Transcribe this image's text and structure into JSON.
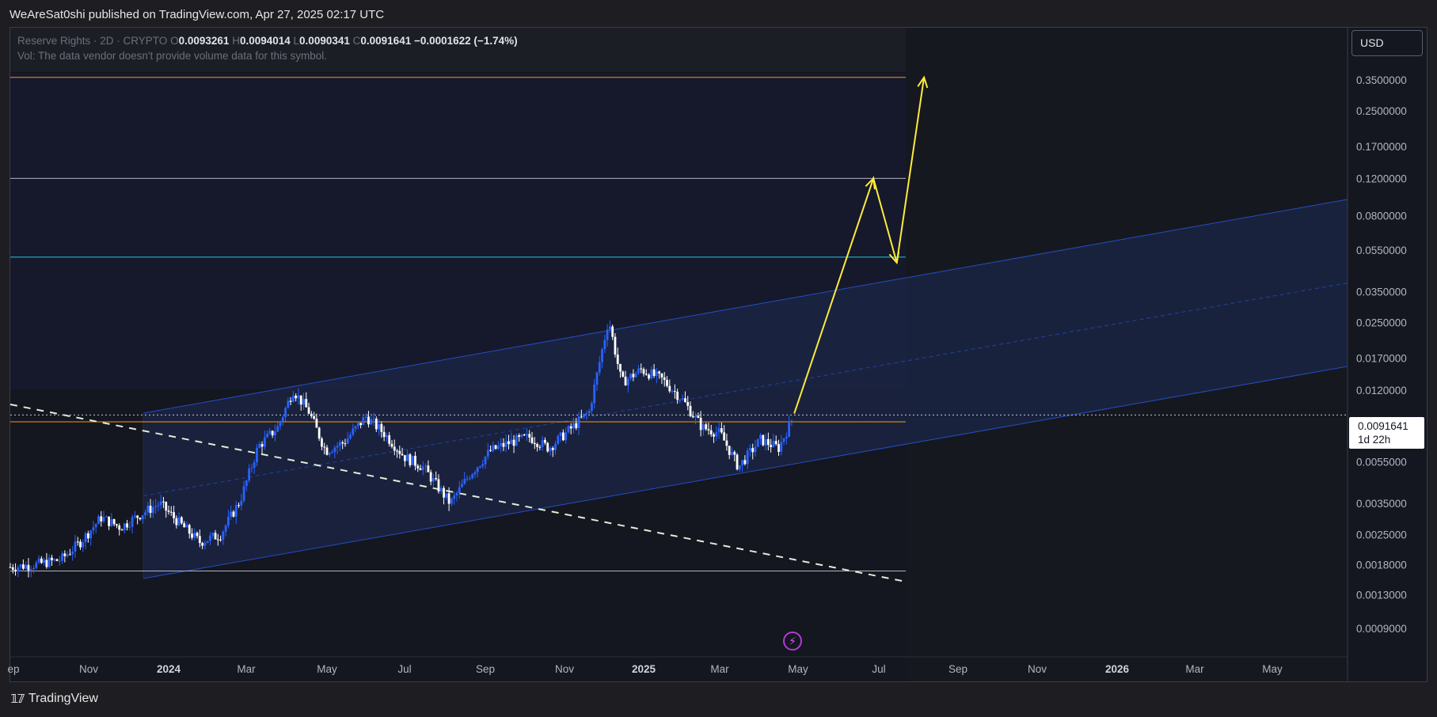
{
  "header": {
    "published_by": "WeAreSat0shi published on TradingView.com, Apr 27, 2025 02:17 UTC"
  },
  "legend": {
    "symbol": "Reserve Rights · 2D · CRYPTO",
    "o_label": "O",
    "o_value": "0.0093261",
    "h_label": "H",
    "h_value": "0.0094014",
    "l_label": "L",
    "l_value": "0.0090341",
    "c_label": "C",
    "c_value": "0.0091641",
    "change": "−0.0001622 (−1.74%)",
    "volume_note": "Vol: The data vendor doesn't provide volume data for this symbol."
  },
  "currency": "USD",
  "last_price": {
    "value": "0.0091641",
    "countdown": "1d 22h"
  },
  "footer": {
    "brand": "TradingView"
  },
  "colors": {
    "candle_up": "#2962ff",
    "candle_down": "#ffffff",
    "projection": "#ffeb3b",
    "level_orange": "#ff9800",
    "level_white": "#b2b5be",
    "level_teal": "#26c6da",
    "channel": "#2962ff"
  },
  "chart_data": {
    "type": "candlestick",
    "title": "Reserve Rights · 2D · CRYPTO",
    "scale": "log",
    "x_ticks": [
      {
        "label": "ep",
        "bold": false
      },
      {
        "label": "Nov",
        "bold": false
      },
      {
        "label": "2024",
        "bold": true
      },
      {
        "label": "Mar",
        "bold": false
      },
      {
        "label": "May",
        "bold": false
      },
      {
        "label": "Jul",
        "bold": false
      },
      {
        "label": "Sep",
        "bold": false
      },
      {
        "label": "Nov",
        "bold": false
      },
      {
        "label": "2025",
        "bold": true
      },
      {
        "label": "Mar",
        "bold": false
      },
      {
        "label": "May",
        "bold": false
      },
      {
        "label": "Jul",
        "bold": false
      },
      {
        "label": "Sep",
        "bold": false
      },
      {
        "label": "Nov",
        "bold": false
      },
      {
        "label": "2026",
        "bold": true
      },
      {
        "label": "Mar",
        "bold": false
      },
      {
        "label": "May",
        "bold": false
      }
    ],
    "y_ticks": [
      "0.3500000",
      "0.2500000",
      "0.1700000",
      "0.1200000",
      "0.0800000",
      "0.0550000",
      "0.0350000",
      "0.0250000",
      "0.0170000",
      "0.0120000",
      "0.0055000",
      "0.0035000",
      "0.0025000",
      "0.0018000",
      "0.0013000",
      "0.0009000"
    ],
    "ylim": [
      0.0007,
      0.45
    ],
    "horizontal_levels": [
      {
        "price": 0.36,
        "color": "orange"
      },
      {
        "price": 0.12,
        "color": "white"
      },
      {
        "price": 0.051,
        "color": "teal"
      },
      {
        "price": 0.0085,
        "color": "orange"
      },
      {
        "price": 0.00168,
        "color": "white"
      }
    ],
    "close_series": [
      {
        "date": "2023-09-01",
        "close": 0.00175
      },
      {
        "date": "2023-09-20",
        "close": 0.0018
      },
      {
        "date": "2023-10-10",
        "close": 0.0019
      },
      {
        "date": "2023-10-25",
        "close": 0.0023
      },
      {
        "date": "2023-11-10",
        "close": 0.003
      },
      {
        "date": "2023-11-25",
        "close": 0.0027
      },
      {
        "date": "2023-12-10",
        "close": 0.0031
      },
      {
        "date": "2023-12-25",
        "close": 0.0035
      },
      {
        "date": "2024-01-10",
        "close": 0.0028
      },
      {
        "date": "2024-01-25",
        "close": 0.0023
      },
      {
        "date": "2024-02-10",
        "close": 0.0025
      },
      {
        "date": "2024-02-25",
        "close": 0.0036
      },
      {
        "date": "2024-03-10",
        "close": 0.0065
      },
      {
        "date": "2024-03-25",
        "close": 0.008
      },
      {
        "date": "2024-04-06",
        "close": 0.012
      },
      {
        "date": "2024-04-18",
        "close": 0.0095
      },
      {
        "date": "2024-05-01",
        "close": 0.0062
      },
      {
        "date": "2024-05-15",
        "close": 0.0068
      },
      {
        "date": "2024-06-01",
        "close": 0.009
      },
      {
        "date": "2024-06-15",
        "close": 0.0075
      },
      {
        "date": "2024-07-01",
        "close": 0.0058
      },
      {
        "date": "2024-07-15",
        "close": 0.0052
      },
      {
        "date": "2024-08-05",
        "close": 0.0035
      },
      {
        "date": "2024-08-20",
        "close": 0.0048
      },
      {
        "date": "2024-09-05",
        "close": 0.0062
      },
      {
        "date": "2024-09-20",
        "close": 0.0068
      },
      {
        "date": "2024-10-05",
        "close": 0.0072
      },
      {
        "date": "2024-10-20",
        "close": 0.0064
      },
      {
        "date": "2024-11-05",
        "close": 0.0078
      },
      {
        "date": "2024-11-20",
        "close": 0.0095
      },
      {
        "date": "2024-12-05",
        "close": 0.026
      },
      {
        "date": "2024-12-15",
        "close": 0.013
      },
      {
        "date": "2024-12-30",
        "close": 0.015
      },
      {
        "date": "2025-01-15",
        "close": 0.0135
      },
      {
        "date": "2025-01-30",
        "close": 0.011
      },
      {
        "date": "2025-02-15",
        "close": 0.008
      },
      {
        "date": "2025-03-01",
        "close": 0.0075
      },
      {
        "date": "2025-03-15",
        "close": 0.0052
      },
      {
        "date": "2025-04-01",
        "close": 0.007
      },
      {
        "date": "2025-04-15",
        "close": 0.0064
      },
      {
        "date": "2025-04-27",
        "close": 0.0091641
      }
    ],
    "projection_path": [
      {
        "date": "2025-04-27",
        "price": 0.0093
      },
      {
        "date": "2025-06-27",
        "price": 0.12
      },
      {
        "date": "2025-07-15",
        "price": 0.048
      },
      {
        "date": "2025-08-05",
        "price": 0.36
      }
    ]
  }
}
